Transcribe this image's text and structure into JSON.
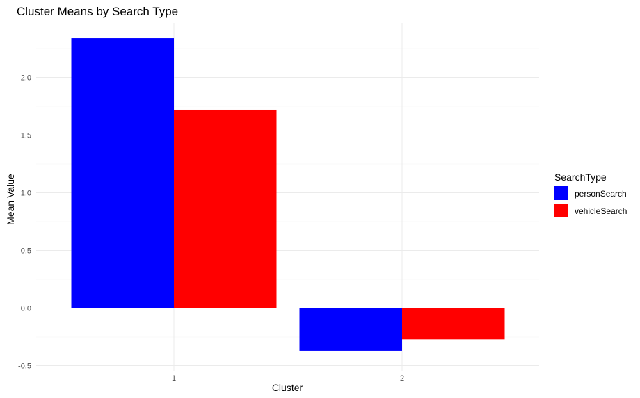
{
  "chart_data": {
    "type": "bar",
    "title": "Cluster Means by Search Type",
    "xlabel": "Cluster",
    "ylabel": "Mean Value",
    "categories": [
      "1",
      "2"
    ],
    "series": [
      {
        "name": "personSearch",
        "color": "#0000ff",
        "values": [
          2.34,
          -0.37
        ]
      },
      {
        "name": "vehicleSearch",
        "color": "#ff0000",
        "values": [
          1.72,
          -0.27
        ]
      }
    ],
    "ylim": [
      -0.5,
      2.5
    ],
    "yticks": [
      -0.5,
      0.0,
      0.5,
      1.0,
      1.5,
      2.0
    ],
    "ytick_labels": [
      "-0.5",
      "0.0",
      "0.5",
      "1.0",
      "1.5",
      "2.0"
    ],
    "legend": {
      "title": "SearchType",
      "position": "right"
    },
    "grid": true
  }
}
